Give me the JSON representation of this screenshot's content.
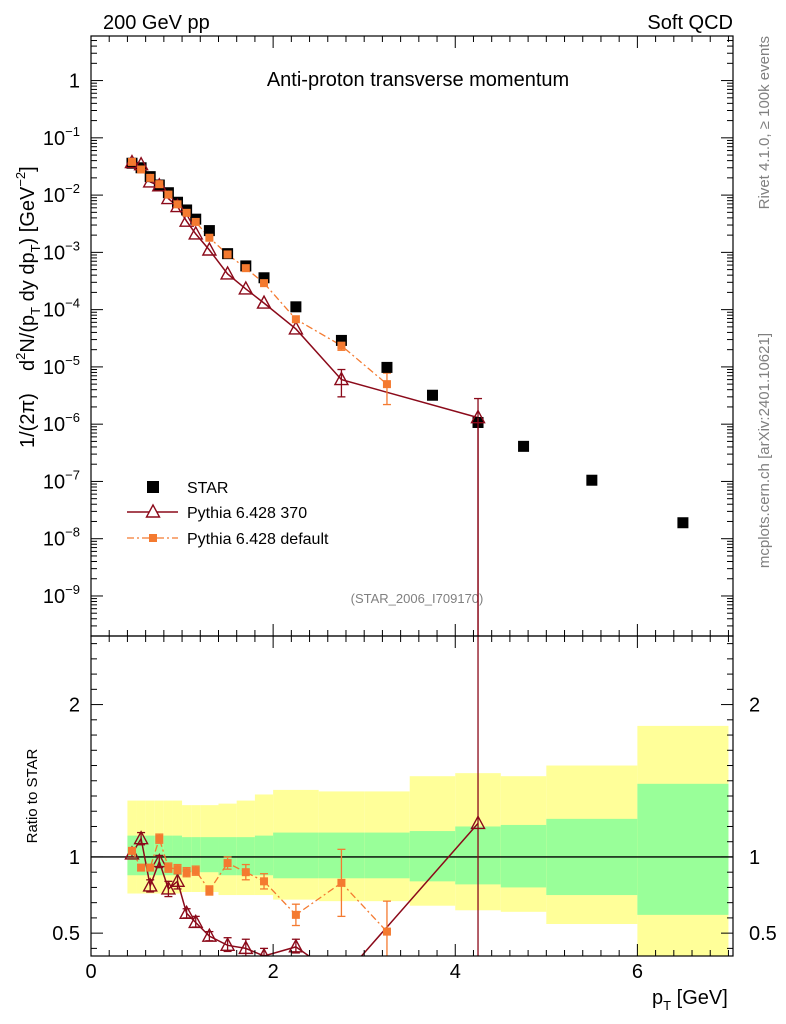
{
  "header": {
    "left": "200 GeV pp",
    "right": "Soft QCD",
    "side_rivet": "Rivet 4.1.0, ≥ 100k events",
    "side_mcplots": "mcplots.cern.ch [arXiv:2401.10621]",
    "analysis_id": "(STAR_2006_I709170)"
  },
  "colors": {
    "data": "#000000",
    "pythia370": "#8b0a1a",
    "pythia_default": "#f47a30",
    "band_stat": "#99ff99",
    "band_total": "#ffff99"
  },
  "chart_data": [
    {
      "type": "scatter",
      "title": "Anti-proton transverse momentum",
      "xlabel": "p_T [GeV]",
      "ylabel": "1/(2π) d²N/(p_T dy dp_T) [GeV⁻²]",
      "yscale": "log",
      "xlim": [
        0,
        7.05
      ],
      "ylim": [
        2e-10,
        6
      ],
      "y_ticks": [
        {
          "value": 1e-09,
          "base": "10",
          "exp": "−9"
        },
        {
          "value": 1e-08,
          "base": "10",
          "exp": "−8"
        },
        {
          "value": 1e-07,
          "base": "10",
          "exp": "−7"
        },
        {
          "value": 1e-06,
          "base": "10",
          "exp": "−6"
        },
        {
          "value": 1e-05,
          "base": "10",
          "exp": "−5"
        },
        {
          "value": 0.0001,
          "base": "10",
          "exp": "−4"
        },
        {
          "value": 0.001,
          "base": "10",
          "exp": "−3"
        },
        {
          "value": 0.01,
          "base": "10",
          "exp": "−2"
        },
        {
          "value": 0.1,
          "base": "10",
          "exp": "−1"
        },
        {
          "value": 1,
          "base": "1",
          "exp": ""
        }
      ],
      "legend": {
        "placement": "lower-left",
        "entries": [
          "STAR",
          "Pythia 6.428 370",
          "Pythia 6.428 default"
        ]
      },
      "series": [
        {
          "name": "STAR",
          "marker": "filled-square",
          "x": [
            0.45,
            0.55,
            0.65,
            0.75,
            0.85,
            0.95,
            1.05,
            1.15,
            1.3,
            1.5,
            1.7,
            1.9,
            2.25,
            2.75,
            3.25,
            3.75,
            4.25,
            4.75,
            5.5,
            6.5
          ],
          "y": [
            0.036,
            0.03,
            0.021,
            0.015,
            0.011,
            0.0075,
            0.0055,
            0.0038,
            0.0024,
            0.00095,
            0.00058,
            0.00036,
            0.000112,
            2.9e-05,
            9.8e-06,
            3.2e-06,
            1.07e-06,
            4.1e-07,
            1.05e-07,
            1.9e-08
          ]
        },
        {
          "name": "Pythia 6.428 370",
          "marker": "open-triangle",
          "line": "solid",
          "x": [
            0.45,
            0.55,
            0.65,
            0.75,
            0.85,
            0.95,
            1.05,
            1.15,
            1.3,
            1.5,
            1.7,
            1.9,
            2.25,
            2.75,
            4.25
          ],
          "y": [
            0.037,
            0.034,
            0.017,
            0.0145,
            0.0087,
            0.0063,
            0.0035,
            0.0021,
            0.0011,
            0.00042,
            0.00023,
            0.00013,
            4.6e-05,
            6e-06,
            1.3e-06
          ],
          "err_lo": [
            0,
            0,
            0,
            0,
            0,
            0,
            0,
            0,
            0,
            0,
            0,
            0,
            0,
            3e-06,
            1.3e-06
          ],
          "err_hi": [
            0,
            0,
            0,
            0,
            0,
            0,
            0,
            0,
            0,
            0,
            0,
            0,
            0,
            3e-06,
            1.5e-06
          ]
        },
        {
          "name": "Pythia 6.428 default",
          "marker": "filled-square-small",
          "line": "dash-dot",
          "x": [
            0.45,
            0.55,
            0.65,
            0.75,
            0.85,
            0.95,
            1.05,
            1.15,
            1.3,
            1.5,
            1.7,
            1.9,
            2.25,
            2.75,
            3.25
          ],
          "y": [
            0.038,
            0.028,
            0.02,
            0.0155,
            0.0102,
            0.0069,
            0.0049,
            0.0034,
            0.0018,
            0.00092,
            0.00053,
            0.00029,
            6.8e-05,
            2.35e-05,
            5e-06
          ],
          "err_lo": [
            0,
            0,
            0,
            0,
            0,
            0,
            0,
            0,
            0,
            0,
            0,
            0,
            0,
            4e-06,
            2.8e-06
          ],
          "err_hi": [
            0,
            0,
            0,
            0,
            0,
            0,
            0,
            0,
            0,
            0,
            0,
            0,
            0,
            4e-06,
            2.8e-06
          ]
        }
      ]
    },
    {
      "type": "line",
      "title": "",
      "xlabel": "p_T [GeV]",
      "ylabel": "Ratio to STAR",
      "xlim": [
        0,
        7.05
      ],
      "ylim": [
        0.35,
        2.45
      ],
      "x_ticks": [
        0,
        2,
        4,
        6
      ],
      "y_ticks": [
        0.5,
        1,
        2
      ],
      "reference_line": 1,
      "bands": {
        "edges": [
          0.4,
          0.5,
          0.6,
          0.7,
          0.8,
          0.9,
          1.0,
          1.1,
          1.2,
          1.4,
          1.6,
          1.8,
          2.0,
          2.5,
          3.0,
          3.5,
          4.0,
          4.5,
          5.0,
          6.0,
          7.0
        ],
        "stat_lo": [
          0.88,
          0.88,
          0.88,
          0.88,
          0.88,
          0.88,
          0.9,
          0.9,
          0.9,
          0.88,
          0.88,
          0.88,
          0.86,
          0.86,
          0.86,
          0.84,
          0.82,
          0.8,
          0.75,
          0.62
        ],
        "stat_hi": [
          1.14,
          1.14,
          1.14,
          1.14,
          1.14,
          1.14,
          1.13,
          1.13,
          1.13,
          1.13,
          1.13,
          1.14,
          1.16,
          1.16,
          1.16,
          1.17,
          1.2,
          1.21,
          1.25,
          1.48
        ],
        "total_lo": [
          0.76,
          0.76,
          0.76,
          0.76,
          0.76,
          0.76,
          0.77,
          0.77,
          0.77,
          0.75,
          0.75,
          0.75,
          0.72,
          0.71,
          0.71,
          0.68,
          0.65,
          0.64,
          0.56,
          0.35
        ],
        "total_hi": [
          1.37,
          1.37,
          1.37,
          1.37,
          1.37,
          1.37,
          1.34,
          1.34,
          1.34,
          1.35,
          1.37,
          1.41,
          1.44,
          1.43,
          1.43,
          1.53,
          1.55,
          1.53,
          1.6,
          1.86
        ]
      },
      "series": [
        {
          "name": "Pythia 6.428 370",
          "x": [
            0.45,
            0.55,
            0.65,
            0.75,
            0.85,
            0.95,
            1.05,
            1.15,
            1.3,
            1.5,
            1.7,
            1.9,
            2.25,
            2.75,
            4.25
          ],
          "y": [
            1.02,
            1.12,
            0.81,
            0.97,
            0.79,
            0.84,
            0.63,
            0.57,
            0.48,
            0.42,
            0.4,
            0.35,
            0.41,
            0.2,
            1.22
          ],
          "err_lo": [
            0.02,
            0.04,
            0.04,
            0.04,
            0.05,
            0.05,
            0.03,
            0.03,
            0.03,
            0.04,
            0.05,
            0.05,
            0.04,
            0.1,
            1.2
          ],
          "err_hi": [
            0.02,
            0.04,
            0.04,
            0.04,
            0.05,
            0.05,
            0.03,
            0.04,
            0.03,
            0.05,
            0.06,
            0.05,
            0.05,
            0.1,
            1.3
          ]
        },
        {
          "name": "Pythia 6.428 default",
          "x": [
            0.45,
            0.55,
            0.65,
            0.75,
            0.85,
            0.95,
            1.05,
            1.15,
            1.3,
            1.5,
            1.7,
            1.9,
            2.25,
            2.75,
            3.25
          ],
          "y": [
            1.04,
            0.93,
            0.93,
            1.12,
            0.93,
            0.92,
            0.9,
            0.91,
            0.78,
            0.96,
            0.9,
            0.84,
            0.62,
            0.83,
            0.51
          ],
          "err_lo": [
            0.02,
            0.02,
            0.02,
            0.03,
            0.03,
            0.03,
            0.03,
            0.03,
            0.03,
            0.04,
            0.05,
            0.05,
            0.07,
            0.22,
            0.2
          ],
          "err_hi": [
            0.02,
            0.02,
            0.02,
            0.03,
            0.03,
            0.03,
            0.03,
            0.03,
            0.03,
            0.04,
            0.05,
            0.05,
            0.07,
            0.22,
            0.2
          ]
        }
      ]
    }
  ]
}
